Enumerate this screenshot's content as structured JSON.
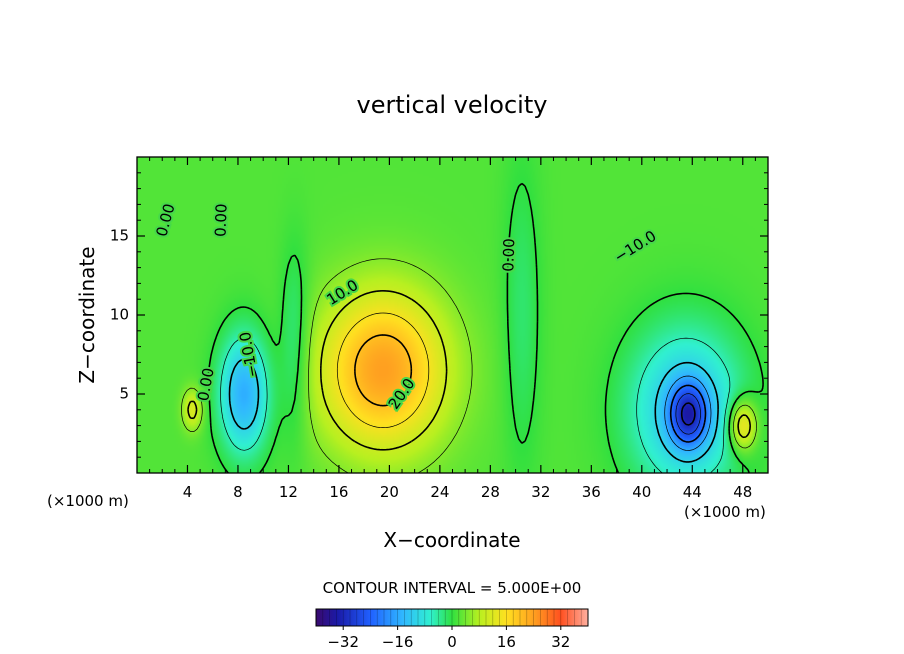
{
  "chart_data": {
    "type": "heatmap",
    "title": "vertical velocity",
    "xlabel": "X−coordinate",
    "ylabel": "Z−coordinate",
    "x_unit_left": "(×1000 m)",
    "x_unit_right": "(×1000 m)",
    "xlim": [
      0,
      50
    ],
    "ylim": [
      0,
      20
    ],
    "x_ticks": [
      4,
      8,
      12,
      16,
      20,
      24,
      28,
      32,
      36,
      40,
      44,
      48
    ],
    "y_ticks": [
      5,
      10,
      15
    ],
    "contour_interval_label": "CONTOUR INTERVAL = 5.000E+00",
    "colorbar": {
      "ticks": [
        -32,
        -16,
        0,
        16,
        32
      ],
      "tick_labels": [
        "−32",
        "−16",
        "0",
        "16",
        "32"
      ],
      "range": [
        -40,
        40
      ]
    },
    "background_value": 2,
    "features": [
      {
        "name": "central updraft",
        "x": 19.5,
        "z": 6.5,
        "peak": 24
      },
      {
        "name": "left downdraft",
        "x": 8.5,
        "z": 5.0,
        "peak": -15
      },
      {
        "name": "right downdraft",
        "x": 43.5,
        "z": 4.0,
        "peak": -33
      },
      {
        "name": "right updraft",
        "x": 48.0,
        "z": 3.0,
        "peak": 16
      },
      {
        "name": "left small updraft",
        "x": 4.4,
        "z": 4.0,
        "peak": 10
      }
    ],
    "contour_labels": [
      {
        "text": "0.00",
        "x": 2.3,
        "z": 16.0,
        "rotate": -75
      },
      {
        "text": "0.00",
        "x": 6.7,
        "z": 16.0,
        "rotate": -88
      },
      {
        "text": "0.00",
        "x": 29.5,
        "z": 13.8,
        "rotate": -88
      },
      {
        "text": "0.00",
        "x": 5.5,
        "z": 5.6,
        "rotate": -80
      },
      {
        "text": "10.0",
        "x": 16.3,
        "z": 11.4,
        "rotate": -32
      },
      {
        "text": "−10.0",
        "x": 8.9,
        "z": 7.5,
        "rotate": -100
      },
      {
        "text": "20.0",
        "x": 21.0,
        "z": 5.0,
        "rotate": -55
      },
      {
        "text": "−10.0",
        "x": 39.5,
        "z": 14.3,
        "rotate": -32
      }
    ]
  }
}
